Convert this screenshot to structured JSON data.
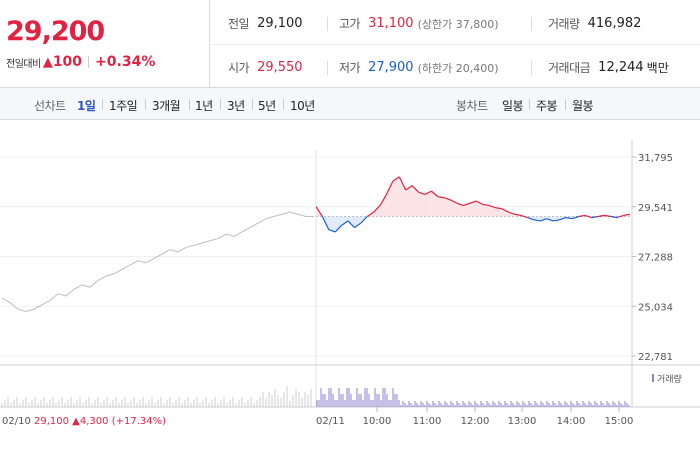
{
  "quote": {
    "price": "29,200",
    "change_label": "전일대비",
    "change_symbol": "▲",
    "change_value": "100",
    "change_percent": "+0.34%",
    "up_color": "#e12343",
    "down_color": "#1a5ed1"
  },
  "stats": {
    "prev_close": {
      "label": "전일",
      "value": "29,100"
    },
    "high": {
      "label": "고가",
      "value": "31,100",
      "sub": "(상한가 37,800)"
    },
    "volume": {
      "label": "거래량",
      "value": "416,982"
    },
    "open": {
      "label": "시가",
      "value": "29,550"
    },
    "low": {
      "label": "저가",
      "value": "27,900",
      "sub": "(하한가 20,400)"
    },
    "amount": {
      "label": "거래대금",
      "value": "12,244",
      "unit": "백만"
    }
  },
  "toolbar": {
    "line_label": "선차트",
    "periods": [
      "1일",
      "1주일",
      "3개월",
      "1년",
      "3년",
      "5년",
      "10년"
    ],
    "active_period": "1일",
    "candle_label": "봉차트",
    "candles": [
      "일봉",
      "주봉",
      "월봉"
    ]
  },
  "chart_data": {
    "type": "line",
    "y_ticks": [
      "31,795",
      "29,541",
      "27,288",
      "25,034",
      "22,781"
    ],
    "ylim": [
      22781,
      31795
    ],
    "baseline": 29100,
    "prev_day": {
      "date_label": "02/10",
      "summary_price": "29,100",
      "summary_symbol": "▲",
      "summary_change": "4,300",
      "summary_percent": "(+17.34%)",
      "values": [
        25400,
        25200,
        24900,
        24800,
        24900,
        25100,
        25300,
        25600,
        25500,
        25800,
        26000,
        25900,
        26200,
        26400,
        26500,
        26700,
        26900,
        27100,
        27000,
        27200,
        27400,
        27600,
        27500,
        27700,
        27800,
        27900,
        28000,
        28100,
        28300,
        28200,
        28400,
        28600,
        28800,
        29000,
        29100,
        29200,
        29300,
        29200,
        29100,
        29100
      ]
    },
    "today": {
      "date_label": "02/11",
      "time_labels": [
        "10:00",
        "11:00",
        "12:00",
        "13:00",
        "14:00",
        "15:00"
      ],
      "values": [
        29550,
        29100,
        28500,
        28400,
        28700,
        28900,
        28600,
        28800,
        29100,
        29300,
        29600,
        30100,
        30700,
        30900,
        30300,
        30500,
        30200,
        30100,
        30250,
        30000,
        29950,
        29850,
        29700,
        29600,
        29700,
        29800,
        29650,
        29600,
        29500,
        29450,
        29300,
        29200,
        29150,
        29050,
        28950,
        28900,
        29000,
        28900,
        28950,
        29050,
        29000,
        29100,
        29150,
        29050,
        29100,
        29150,
        29100,
        29050,
        29150,
        29200
      ]
    },
    "volume_legend": "거래량"
  }
}
